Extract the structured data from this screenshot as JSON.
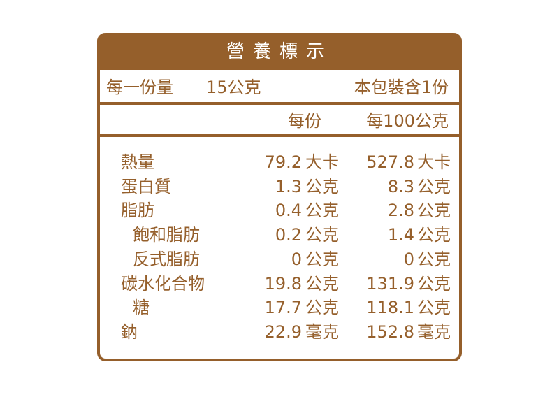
{
  "title": "營養標示",
  "serving": {
    "label": "每一份量",
    "size": "15公克",
    "per_pack": "本包裝含1份"
  },
  "columns": {
    "per_serving": "每份",
    "per_100g": "每100公克"
  },
  "rows": [
    {
      "name": "熱量",
      "indent": false,
      "serving": "79.2",
      "serving_unit": "大卡",
      "per100": "527.8",
      "per100_unit": "大卡"
    },
    {
      "name": "蛋白質",
      "indent": false,
      "serving": "1.3",
      "serving_unit": "公克",
      "per100": "8.3",
      "per100_unit": "公克"
    },
    {
      "name": "脂肪",
      "indent": false,
      "serving": "0.4",
      "serving_unit": "公克",
      "per100": "2.8",
      "per100_unit": "公克"
    },
    {
      "name": "飽和脂肪",
      "indent": true,
      "serving": "0.2",
      "serving_unit": "公克",
      "per100": "1.4",
      "per100_unit": "公克"
    },
    {
      "name": "反式脂肪",
      "indent": true,
      "serving": "0",
      "serving_unit": "公克",
      "per100": "0",
      "per100_unit": "公克"
    },
    {
      "name": "碳水化合物",
      "indent": false,
      "serving": "19.8",
      "serving_unit": "公克",
      "per100": "131.9",
      "per100_unit": "公克"
    },
    {
      "name": "糖",
      "indent": true,
      "serving": "17.7",
      "serving_unit": "公克",
      "per100": "118.1",
      "per100_unit": "公克"
    },
    {
      "name": "鈉",
      "indent": false,
      "serving": "22.9",
      "serving_unit": "毫克",
      "per100": "152.8",
      "per100_unit": "毫克"
    }
  ],
  "colors": {
    "brand": "#955f2b"
  }
}
